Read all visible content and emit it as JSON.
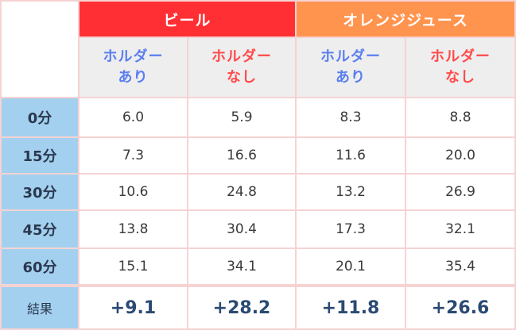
{
  "groups": {
    "beer": "ビール",
    "orange_juice": "オレンジジュース"
  },
  "subheaders": [
    {
      "line1": "ホルダー",
      "line2": "あり",
      "color": "#5a7ef0"
    },
    {
      "line1": "ホルダー",
      "line2": "なし",
      "color": "#ff4a4a"
    },
    {
      "line1": "ホルダー",
      "line2": "あり",
      "color": "#5a7ef0"
    },
    {
      "line1": "ホルダー",
      "line2": "なし",
      "color": "#ff4a4a"
    }
  ],
  "rows": [
    {
      "label": "0分",
      "values": [
        "6.0",
        "5.9",
        "8.3",
        "8.8"
      ]
    },
    {
      "label": "15分",
      "values": [
        "7.3",
        "16.6",
        "11.6",
        "20.0"
      ]
    },
    {
      "label": "30分",
      "values": [
        "10.6",
        "24.8",
        "13.2",
        "26.9"
      ]
    },
    {
      "label": "45分",
      "values": [
        "13.8",
        "30.4",
        "17.3",
        "32.1"
      ]
    },
    {
      "label": "60分",
      "values": [
        "15.1",
        "34.1",
        "20.1",
        "35.4"
      ]
    }
  ],
  "result": {
    "label": "結果",
    "values": [
      "+9.1",
      "+28.2",
      "+11.8",
      "+26.6"
    ]
  },
  "colors": {
    "beer_header": "#ff2f34",
    "orange_juice_header": "#ff944f",
    "row_label_bg": "#a3d0ee",
    "grid_line": "#f6d3d3"
  }
}
